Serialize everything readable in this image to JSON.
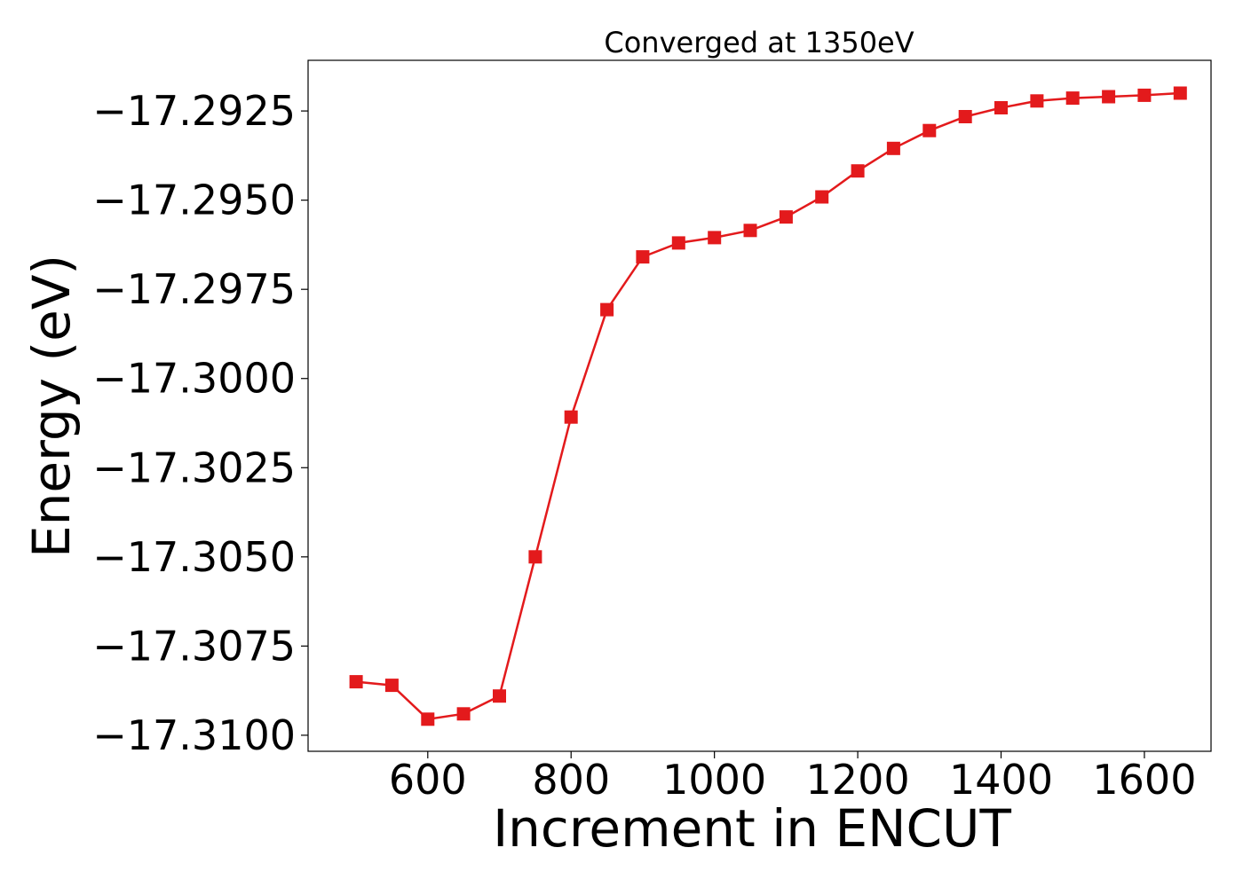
{
  "chart_data": {
    "type": "line",
    "title": "Converged at 1350eV",
    "xlabel": "Increment in ENCUT",
    "ylabel": "Energy (eV)",
    "x_ticks": [
      600,
      800,
      1000,
      1200,
      1400,
      1600
    ],
    "x_tick_labels": [
      "600",
      "800",
      "1000",
      "1200",
      "1400",
      "1600"
    ],
    "y_ticks": [
      -17.31,
      -17.3075,
      -17.305,
      -17.3025,
      -17.3,
      -17.2975,
      -17.295,
      -17.2925
    ],
    "y_tick_labels": [
      "−17.3100",
      "−17.3075",
      "−17.3050",
      "−17.3025",
      "−17.3000",
      "−17.2975",
      "−17.2950",
      "−17.2925"
    ],
    "xlim": [
      433,
      1693
    ],
    "ylim": [
      -17.31045,
      -17.29108
    ],
    "grid": false,
    "series": [
      {
        "color": "#e31a1c",
        "marker": "square",
        "x": [
          500,
          550,
          600,
          650,
          700,
          750,
          800,
          850,
          900,
          950,
          1000,
          1050,
          1100,
          1150,
          1200,
          1250,
          1300,
          1350,
          1400,
          1450,
          1500,
          1550,
          1600,
          1650
        ],
        "y": [
          -17.3085,
          -17.3086,
          -17.30955,
          -17.3094,
          -17.3089,
          -17.305,
          -17.30108,
          -17.29807,
          -17.29659,
          -17.2962,
          -17.29605,
          -17.29585,
          -17.29547,
          -17.29491,
          -17.29418,
          -17.29355,
          -17.29305,
          -17.29266,
          -17.29241,
          -17.29222,
          -17.29214,
          -17.2921,
          -17.29206,
          -17.292
        ]
      }
    ]
  }
}
